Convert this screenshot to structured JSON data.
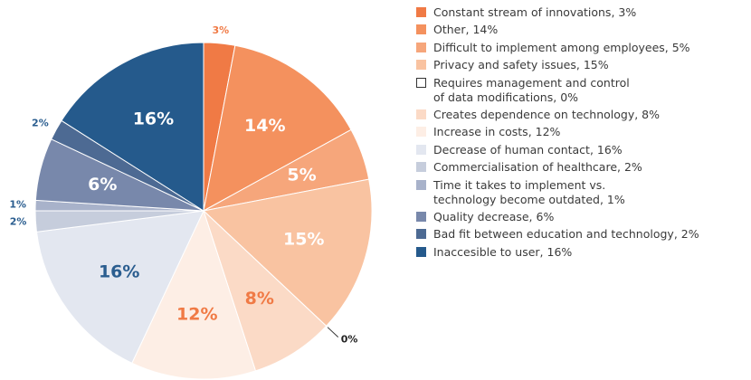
{
  "chart_data": {
    "type": "pie",
    "categories": [
      "Constant stream of innovations, 3%",
      "Other, 14%",
      "Difficult to implement among employees, 5%",
      "Privacy and safety issues, 15%",
      "Requires management and control\nof data modifications, 0%",
      "Creates dependence on technology, 8%",
      "Increase in costs, 12%",
      "Decrease of human contact, 16%",
      "Commercialisation of healthcare, 2%",
      "Time it takes to implement vs.\ntechnology become outdated, 1%",
      "Quality decrease, 6%",
      "Bad fit between education and technology, 2%",
      "Inaccesible to user, 16%"
    ],
    "values": [
      3,
      14,
      5,
      15,
      0,
      8,
      12,
      16,
      2,
      1,
      6,
      2,
      16
    ],
    "value_labels": [
      "3%",
      "14%",
      "5%",
      "15%",
      "0%",
      "8%",
      "12%",
      "16%",
      "2%",
      "1%",
      "6%",
      "2%",
      "16%"
    ],
    "colors": [
      "#f07a45",
      "#f4915e",
      "#f6a67b",
      "#f9c3a1",
      "#ffffff",
      "#fbdac6",
      "#fdeee5",
      "#e3e7f0",
      "#c6cddc",
      "#a8b2ca",
      "#7888ab",
      "#4d6a93",
      "#255a8c"
    ],
    "label_colors": [
      "#f07a45",
      "#ffffff",
      "#ffffff",
      "#ffffff",
      "#222222",
      "#f07a45",
      "#f07a45",
      "#2a5d8f",
      "#2a5d8f",
      "#2a5d8f",
      "#ffffff",
      "#2a5d8f",
      "#ffffff"
    ]
  }
}
